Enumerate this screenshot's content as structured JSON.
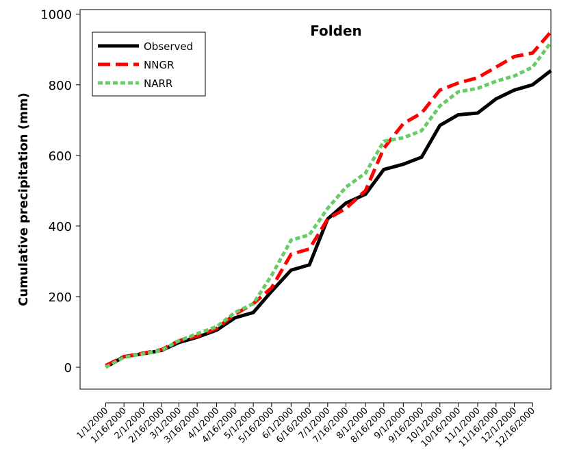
{
  "chart_data": {
    "type": "line",
    "title": "Folden",
    "y_label": "Cumulative precipitation (mm)",
    "x": [
      "1/1/2000",
      "1/16/2000",
      "2/1/2000",
      "2/16/2000",
      "3/1/2000",
      "3/16/2000",
      "4/1/2000",
      "4/16/2000",
      "5/1/2000",
      "5/16/2000",
      "6/1/2000",
      "6/16/2000",
      "7/1/2000",
      "7/16/2000",
      "8/1/2000",
      "8/16/2000",
      "9/1/2000",
      "9/16/2000",
      "10/1/2000",
      "10/16/2000",
      "11/1/2000",
      "11/16/2000",
      "12/1/2000",
      "12/16/2000",
      "12/31/2000"
    ],
    "series": [
      {
        "name": "Observed",
        "color": "#000000",
        "dash": "solid",
        "values": [
          0,
          30,
          38,
          48,
          70,
          85,
          105,
          140,
          155,
          215,
          275,
          290,
          420,
          465,
          490,
          560,
          575,
          595,
          685,
          715,
          720,
          760,
          785,
          800,
          840
        ]
      },
      {
        "name": "NNGR",
        "color": "#ff0000",
        "dash": "long",
        "values": [
          5,
          30,
          40,
          50,
          75,
          88,
          110,
          150,
          180,
          225,
          320,
          335,
          420,
          450,
          500,
          620,
          690,
          720,
          785,
          805,
          820,
          850,
          880,
          890,
          950
        ]
      },
      {
        "name": "NARR",
        "color": "#66cc66",
        "dash": "short",
        "values": [
          0,
          28,
          38,
          48,
          75,
          95,
          115,
          155,
          180,
          260,
          360,
          375,
          450,
          510,
          550,
          640,
          650,
          670,
          740,
          780,
          790,
          810,
          825,
          850,
          920
        ]
      }
    ],
    "xlim": [
      "12/11/1999",
      "12/31/2000"
    ],
    "xticks": [
      "1/1/2000",
      "1/16/2000",
      "2/1/2000",
      "2/16/2000",
      "3/1/2000",
      "3/16/2000",
      "4/1/2000",
      "4/16/2000",
      "5/1/2000",
      "5/16/2000",
      "6/1/2000",
      "6/16/2000",
      "7/1/2000",
      "7/16/2000",
      "8/1/2000",
      "8/16/2000",
      "9/1/2000",
      "9/16/2000",
      "10/1/2000",
      "10/16/2000",
      "11/1/2000",
      "11/16/2000",
      "12/1/2000",
      "12/16/2000"
    ],
    "ylim": [
      -62,
      1013
    ],
    "yticks": [
      0,
      200,
      400,
      600,
      800,
      1000
    ],
    "grid": false,
    "legend": "upper left"
  }
}
